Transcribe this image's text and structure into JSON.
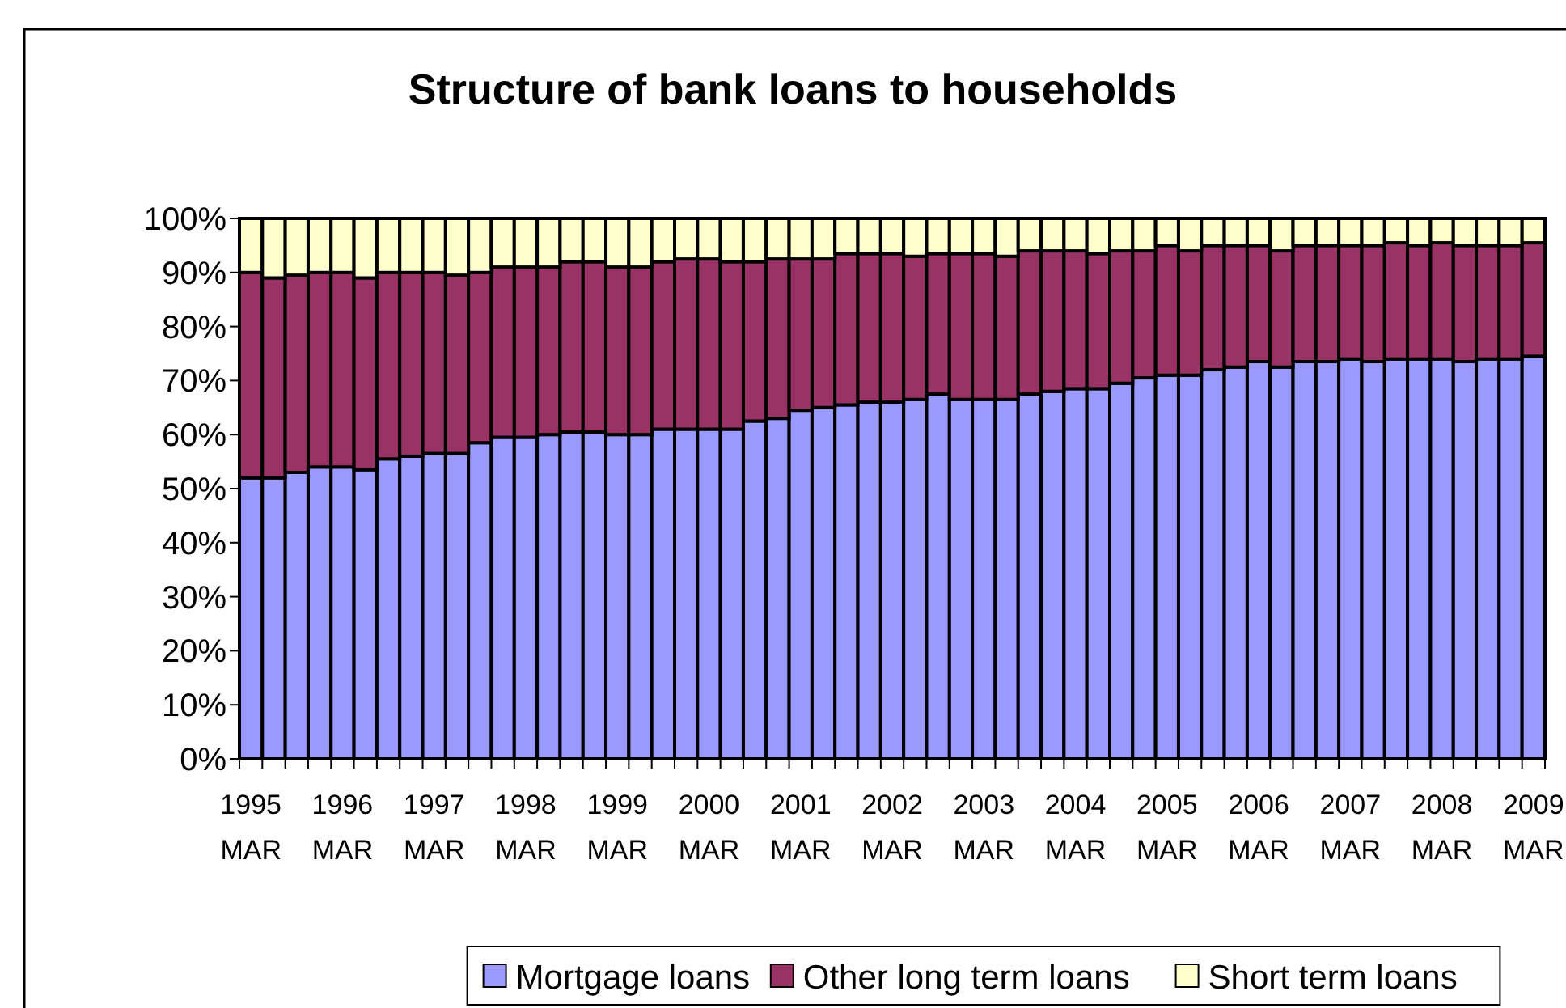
{
  "chart_data": {
    "type": "bar",
    "title": "Structure of bank loans to households",
    "stacked": true,
    "legend": "bottom",
    "categories": [
      "1995 MAR",
      null,
      null,
      null,
      "1996 MAR",
      null,
      null,
      null,
      "1997 MAR",
      null,
      null,
      null,
      "1998 MAR",
      null,
      null,
      null,
      "1999 MAR",
      null,
      null,
      null,
      "2000 MAR",
      null,
      null,
      null,
      "2001 MAR",
      null,
      null,
      null,
      "2002 MAR",
      null,
      null,
      null,
      "2003 MAR",
      null,
      null,
      null,
      "2004 MAR",
      null,
      null,
      null,
      "2005 MAR",
      null,
      null,
      null,
      "2006 MAR",
      null,
      null,
      null,
      "2007 MAR",
      null,
      null,
      null,
      "2008 MAR",
      null,
      null,
      null,
      "2009 MAR"
    ],
    "ylim": [
      0,
      100
    ],
    "yticks": [
      {
        "value": 0,
        "label": "0%"
      },
      {
        "value": 10,
        "label": "10%"
      },
      {
        "value": 20,
        "label": "20%"
      },
      {
        "value": 30,
        "label": "30%"
      },
      {
        "value": 40,
        "label": "40%"
      },
      {
        "value": 50,
        "label": "50%"
      },
      {
        "value": 60,
        "label": "60%"
      },
      {
        "value": 70,
        "label": "70%"
      },
      {
        "value": 80,
        "label": "80%"
      },
      {
        "value": 90,
        "label": "90%"
      },
      {
        "value": 100,
        "label": "100%"
      }
    ],
    "series": [
      {
        "name": "Mortgage loans",
        "color": "#9999ff",
        "values": [
          52,
          52,
          53,
          54,
          54,
          53.5,
          55.5,
          56,
          56.5,
          56.5,
          58.5,
          59.5,
          59.5,
          60,
          60.5,
          60.5,
          60,
          60,
          61,
          61,
          61,
          61,
          62.5,
          63,
          64.5,
          65,
          65.5,
          66,
          66,
          66.5,
          67.5,
          66.5,
          66.5,
          66.5,
          67.5,
          68,
          68.5,
          68.5,
          69.5,
          70.5,
          71,
          71,
          72,
          72.5,
          73.5,
          72.5,
          73.5,
          73.5,
          74,
          73.5,
          74,
          74,
          74,
          73.5,
          74,
          74,
          74.5
        ]
      },
      {
        "name": "Other long term loans",
        "color": "#993366",
        "values": [
          38,
          37,
          36.5,
          36,
          36,
          35.5,
          34.5,
          34,
          33.5,
          33,
          31.5,
          31.5,
          31.5,
          31,
          31.5,
          31.5,
          31,
          31,
          31,
          31.5,
          31.5,
          31,
          29.5,
          29.5,
          28,
          27.5,
          28,
          27.5,
          27.5,
          26.5,
          26,
          27,
          27,
          26.5,
          26.5,
          26,
          25.5,
          25,
          24.5,
          23.5,
          24,
          23,
          23,
          22.5,
          21.5,
          21.5,
          21.5,
          21.5,
          21,
          21.5,
          21.5,
          21,
          21.5,
          21.5,
          21,
          21,
          21
        ]
      },
      {
        "name": "Short term loans",
        "color": "#ffffcc",
        "values": [
          10,
          11,
          10.5,
          10,
          10,
          11,
          10,
          10,
          10,
          10.5,
          10,
          9,
          9,
          9,
          8,
          8,
          9,
          9,
          8,
          7.5,
          7.5,
          8,
          8,
          7.5,
          7.5,
          7.5,
          6.5,
          6.5,
          6.5,
          7,
          6.5,
          6.5,
          6.5,
          7,
          6,
          6,
          6,
          6.5,
          6,
          6,
          5,
          6,
          5,
          5,
          5,
          6,
          5,
          5,
          5,
          5,
          4.5,
          5,
          4.5,
          5,
          5,
          5,
          4.5
        ]
      }
    ]
  }
}
